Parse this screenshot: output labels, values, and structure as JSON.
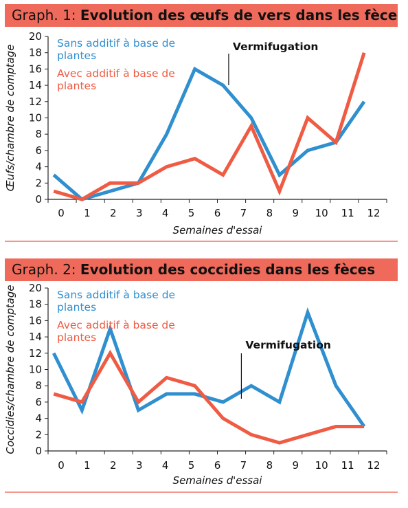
{
  "colors": {
    "blue": "#2f8fcf",
    "red": "#ef5b43",
    "banner": "#ef6a5a"
  },
  "chart_data": [
    {
      "type": "line",
      "title_prefix": "Graph. 1",
      "title": "Evolution des œufs de vers dans les fèces",
      "xlabel": "Semaines d'essai",
      "ylabel": "Œufs/chambre de comptage",
      "xlim": [
        0,
        12
      ],
      "ylim": [
        0,
        20
      ],
      "xticks": [
        "0",
        "1",
        "2",
        "3",
        "4",
        "5",
        "6",
        "7",
        "8",
        "9",
        "10",
        "11",
        "12"
      ],
      "yticks": [
        "0",
        "2",
        "4",
        "6",
        "8",
        "10",
        "12",
        "14",
        "16",
        "18",
        "20"
      ],
      "legend_position": "top-left",
      "grid": false,
      "series": [
        {
          "name": "Sans additif à base de plantes",
          "color": "#2f8fcf",
          "points": [
            [
              0,
              3
            ],
            [
              1,
              0
            ],
            [
              2,
              1
            ],
            [
              3,
              2
            ],
            [
              4,
              8
            ],
            [
              5,
              16
            ],
            [
              6,
              14
            ],
            [
              7,
              10
            ],
            [
              8,
              3
            ],
            [
              9,
              6
            ],
            [
              10,
              7
            ],
            [
              11,
              12
            ]
          ]
        },
        {
          "name": "Avec additif à base de plantes",
          "color": "#ef5b43",
          "points": [
            [
              0,
              1
            ],
            [
              1,
              0
            ],
            [
              2,
              2
            ],
            [
              3,
              2
            ],
            [
              4,
              4
            ],
            [
              5,
              5
            ],
            [
              6,
              3
            ],
            [
              7,
              9
            ],
            [
              8,
              1
            ],
            [
              9,
              10
            ],
            [
              10,
              7
            ],
            [
              11,
              18
            ]
          ]
        }
      ],
      "annotations": [
        {
          "text": "Vermifugation",
          "x": 6.4
        }
      ]
    },
    {
      "type": "line",
      "title_prefix": "Graph. 2",
      "title": "Evolution des coccidies dans les fèces",
      "xlabel": "Semaines d'essai",
      "ylabel": "Coccidies/chambre de comptage",
      "xlim": [
        0,
        12
      ],
      "ylim": [
        0,
        20
      ],
      "xticks": [
        "0",
        "1",
        "2",
        "3",
        "4",
        "5",
        "6",
        "7",
        "8",
        "9",
        "10",
        "11",
        "12"
      ],
      "yticks": [
        "0",
        "2",
        "4",
        "6",
        "8",
        "10",
        "12",
        "14",
        "16",
        "18",
        "20"
      ],
      "legend_position": "top-left",
      "grid": false,
      "series": [
        {
          "name": "Sans additif à base de plantes",
          "color": "#2f8fcf",
          "points": [
            [
              0,
              12
            ],
            [
              1,
              5
            ],
            [
              2,
              15
            ],
            [
              3,
              5
            ],
            [
              4,
              7
            ],
            [
              5,
              7
            ],
            [
              6,
              6
            ],
            [
              7,
              8
            ],
            [
              8,
              6
            ],
            [
              9,
              17
            ],
            [
              10,
              8
            ],
            [
              11,
              3
            ]
          ]
        },
        {
          "name": "Avec additif à base de plantes",
          "color": "#ef5b43",
          "points": [
            [
              0,
              7
            ],
            [
              1,
              6
            ],
            [
              2,
              12
            ],
            [
              3,
              6
            ],
            [
              4,
              9
            ],
            [
              5,
              8
            ],
            [
              6,
              4
            ],
            [
              7,
              2
            ],
            [
              8,
              1
            ],
            [
              9,
              2
            ],
            [
              10,
              3
            ],
            [
              11,
              3
            ]
          ]
        }
      ],
      "annotations": [
        {
          "text": "Vermifugation",
          "x": 6.85
        }
      ]
    }
  ]
}
